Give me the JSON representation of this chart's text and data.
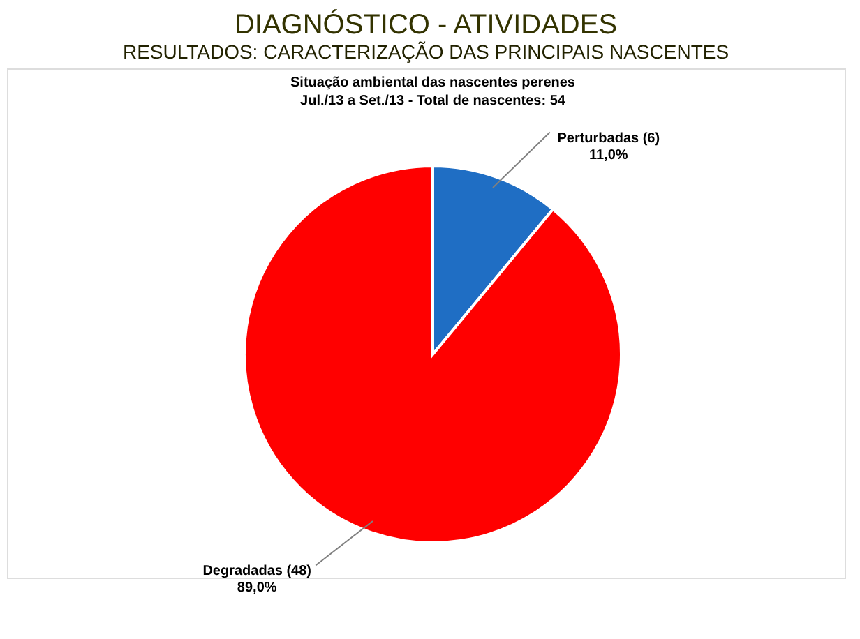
{
  "chart_data": {
    "type": "pie",
    "title": "DIAGNÓSTICO - ATIVIDADES",
    "subtitle": "RESULTADOS: CARACTERIZAÇÃO DAS PRINCIPAIS NASCENTES",
    "annotations": [
      "Situação ambiental das nascentes perenes",
      "Jul./13 a Set./13 - Total de nascentes: 54"
    ],
    "categories": [
      "Perturbadas (6)",
      "Degradadas (48)"
    ],
    "values": [
      11,
      89
    ],
    "colors": [
      "#1f6ec4",
      "#ff0000"
    ],
    "value_labels": [
      "11,0%",
      "89,0%"
    ],
    "legend": false
  }
}
